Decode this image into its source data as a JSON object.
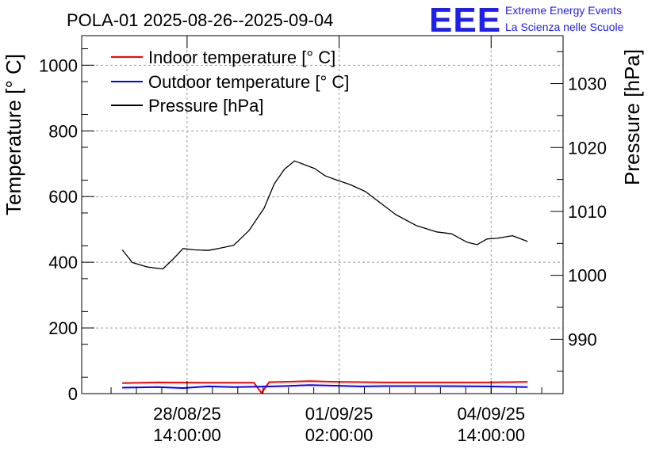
{
  "logo": {
    "mark": "EEE",
    "line1": "Extreme Energy Events",
    "line2": "La Scienza nelle Scuole"
  },
  "chart_data": {
    "type": "line",
    "title": "POLA-01 2025-08-26--2025-09-04",
    "ylabel": "Temperature [° C]",
    "y2label": "Pressure [hPa]",
    "xlabel": "",
    "xlim_days": [
      0,
      9.5
    ],
    "ylim": [
      0,
      1090
    ],
    "y2lim": [
      981.5,
      1037.5
    ],
    "grid": true,
    "legend_position": "top-left",
    "x_ticks": [
      {
        "day": 2.08,
        "date": "28/08/25",
        "time": "14:00:00"
      },
      {
        "day": 5.08,
        "date": "01/09/25",
        "time": "02:00:00"
      },
      {
        "day": 8.08,
        "date": "04/09/25",
        "time": "14:00:00"
      }
    ],
    "y_ticks": [
      0,
      200,
      400,
      600,
      800,
      1000
    ],
    "y2_ticks": [
      990,
      1000,
      1010,
      1020,
      1030
    ],
    "series": [
      {
        "name": "Indoor temperature [° C]",
        "axis": "left",
        "color": "#ff0000",
        "x": [
          0.8,
          1.5,
          2.5,
          3.4,
          3.55,
          3.7,
          4.0,
          4.5,
          5.0,
          6.0,
          7.0,
          8.0,
          8.8
        ],
        "y": [
          32,
          34,
          33,
          33,
          2,
          35,
          36,
          38,
          36,
          34,
          34,
          34,
          36
        ]
      },
      {
        "name": "Outdoor temperature [° C]",
        "axis": "left",
        "color": "#0000ff",
        "x": [
          0.8,
          1.5,
          2.0,
          2.5,
          3.0,
          3.5,
          4.0,
          4.5,
          5.0,
          5.5,
          6.0,
          7.0,
          8.0,
          8.8
        ],
        "y": [
          18,
          20,
          17,
          22,
          20,
          21,
          23,
          26,
          24,
          22,
          23,
          23,
          22,
          20
        ]
      },
      {
        "name": "Pressure [hPa]",
        "axis": "right",
        "color": "#000000",
        "x": [
          0.8,
          1.0,
          1.3,
          1.6,
          1.8,
          2.0,
          2.2,
          2.5,
          2.7,
          3.0,
          3.3,
          3.6,
          3.8,
          4.0,
          4.2,
          4.4,
          4.6,
          4.8,
          5.0,
          5.3,
          5.6,
          5.9,
          6.2,
          6.6,
          7.0,
          7.3,
          7.6,
          7.8,
          8.0,
          8.2,
          8.5,
          8.8
        ],
        "y": [
          1004.0,
          1002.0,
          1001.3,
          1001.0,
          1002.5,
          1004.2,
          1004.0,
          1003.9,
          1004.2,
          1004.7,
          1007.0,
          1010.5,
          1014.3,
          1016.6,
          1017.9,
          1017.3,
          1016.7,
          1015.6,
          1015.0,
          1014.2,
          1013.1,
          1011.3,
          1009.5,
          1007.8,
          1006.8,
          1006.5,
          1005.2,
          1004.8,
          1005.7,
          1005.8,
          1006.2,
          1005.3
        ]
      }
    ]
  }
}
